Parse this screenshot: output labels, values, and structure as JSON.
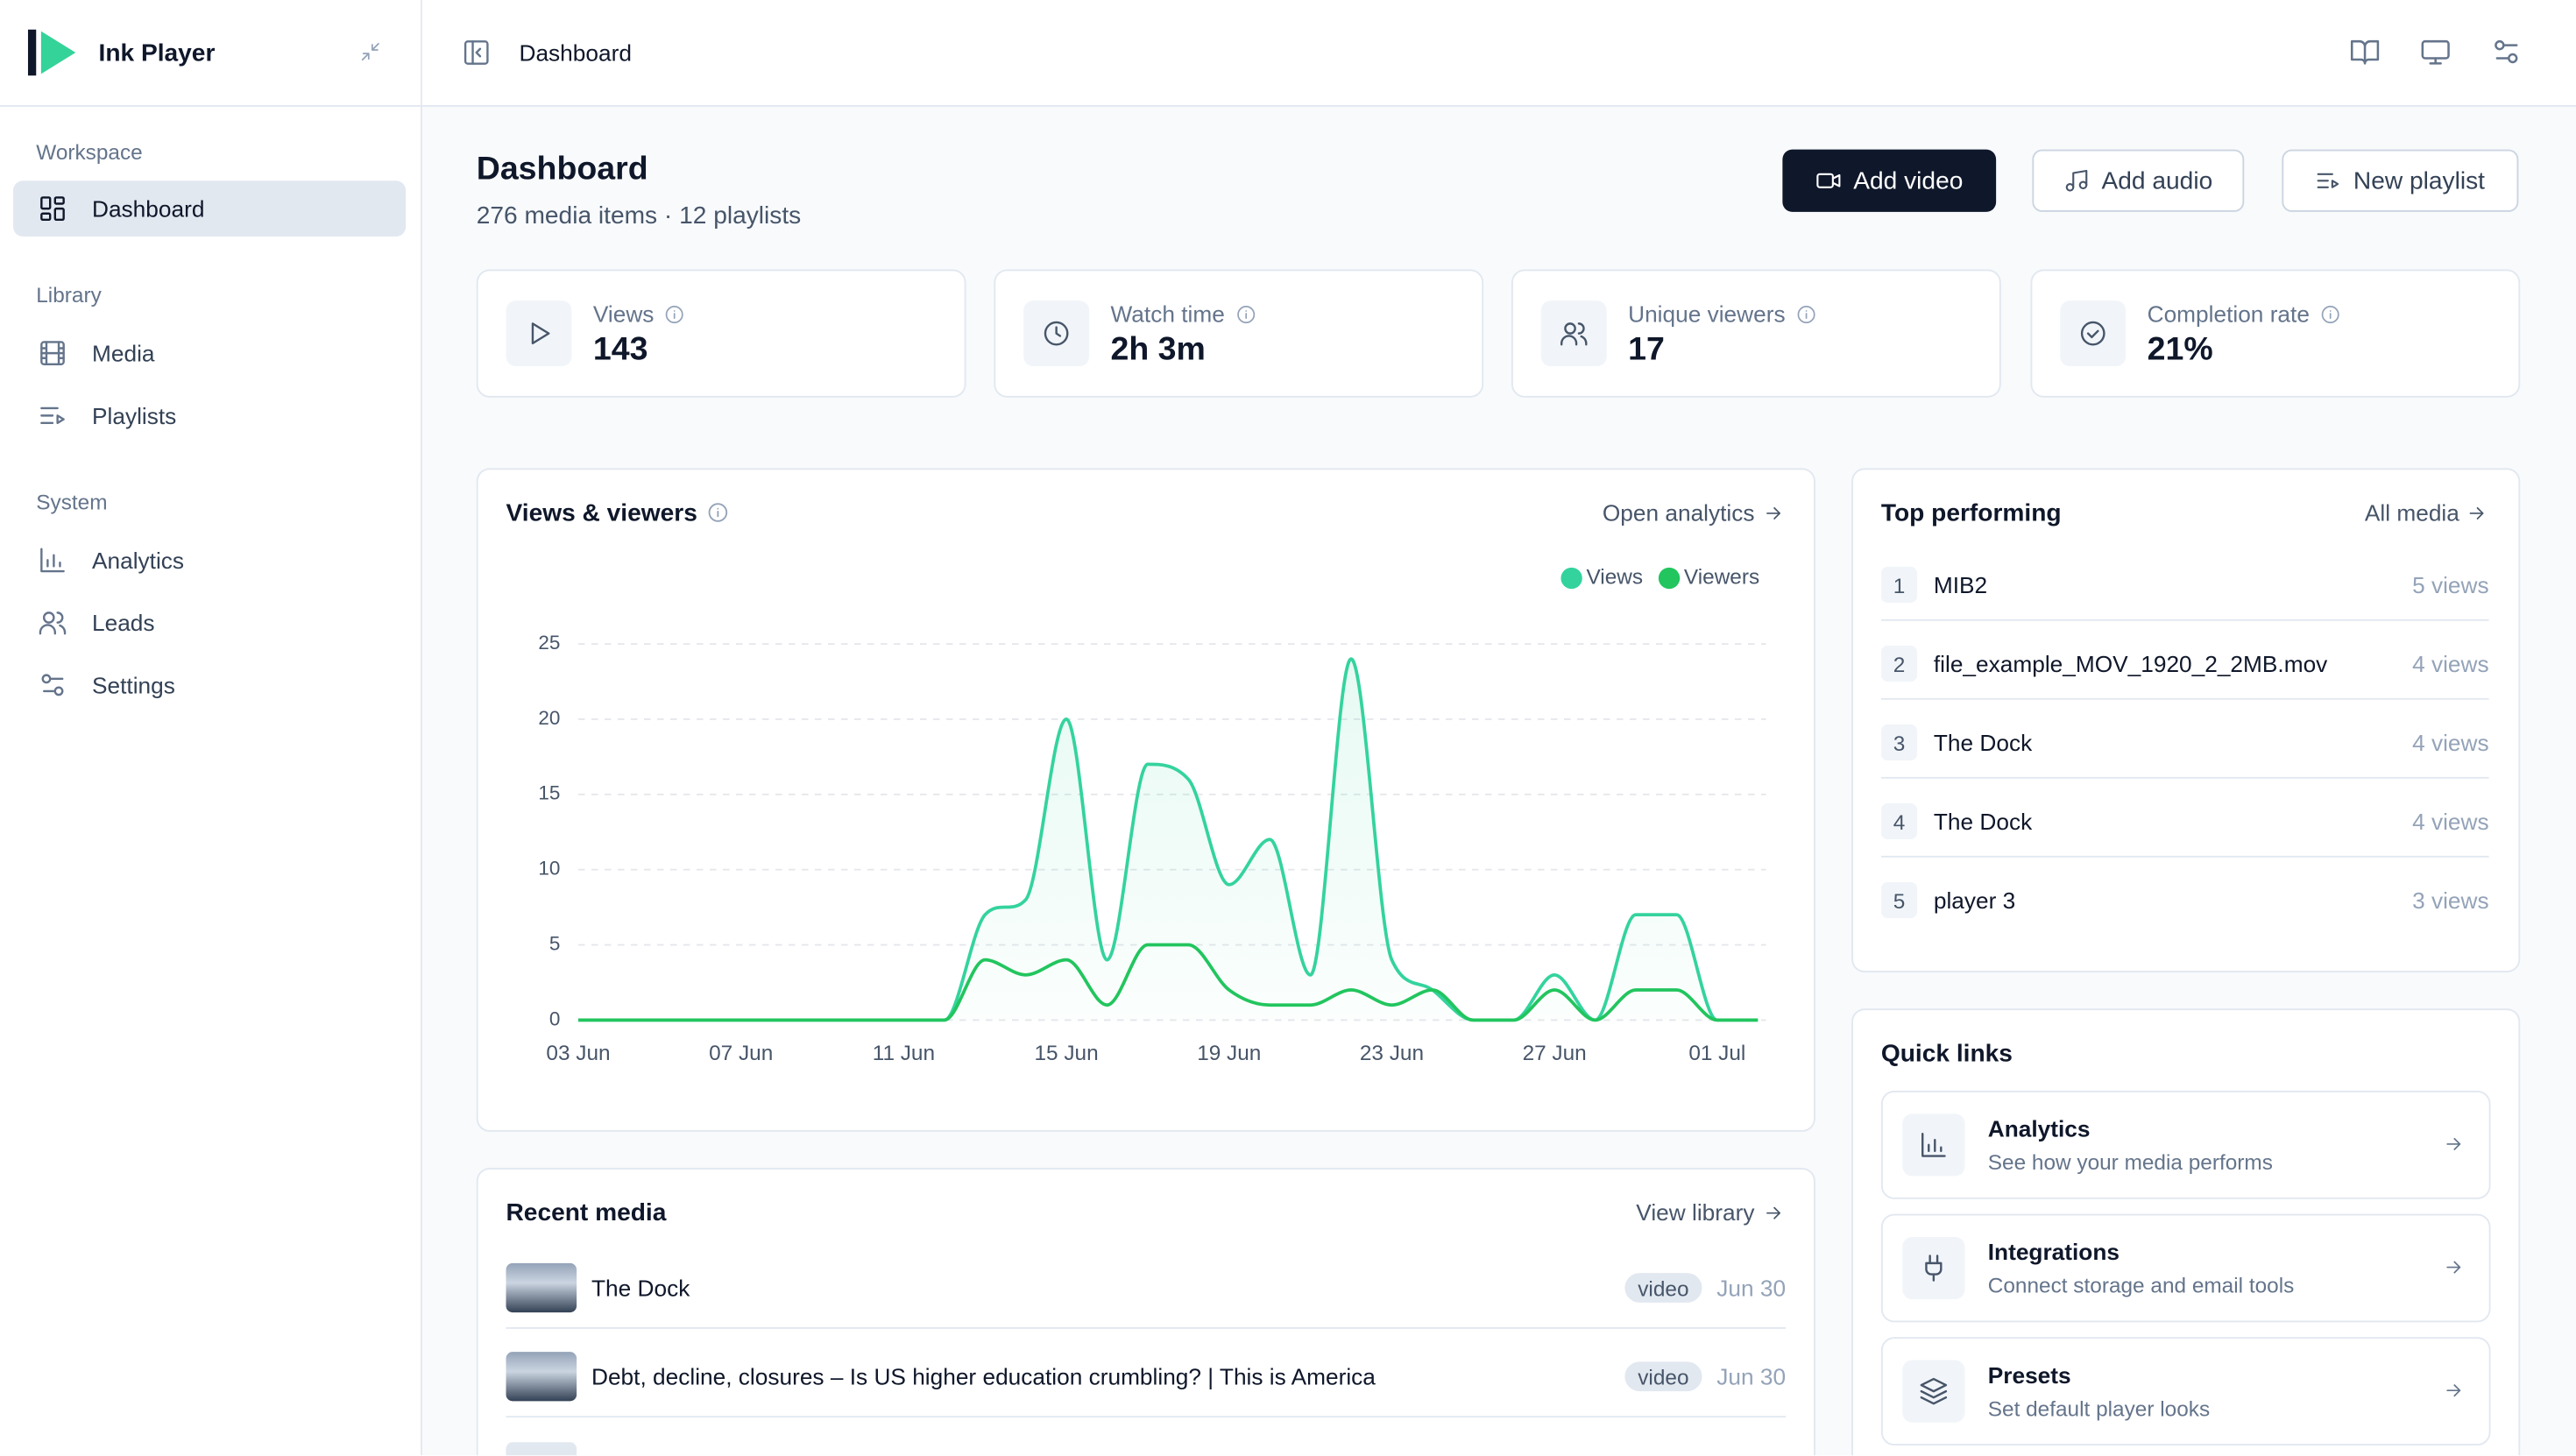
{
  "app": {
    "name": "Ink Player"
  },
  "sidebar": {
    "sections": [
      {
        "title": "Workspace",
        "items": [
          "Dashboard"
        ]
      },
      {
        "title": "Library",
        "items": [
          "Media",
          "Playlists"
        ]
      },
      {
        "title": "System",
        "items": [
          "Analytics",
          "Leads",
          "Settings"
        ]
      }
    ]
  },
  "header": {
    "breadcrumb": "Dashboard"
  },
  "page": {
    "title": "Dashboard",
    "subtitle": "276 media items · 12 playlists",
    "actions": [
      "Add video",
      "Add audio",
      "New playlist"
    ]
  },
  "stats": [
    {
      "label": "Views",
      "value": "143"
    },
    {
      "label": "Watch time",
      "value": "2h 3m"
    },
    {
      "label": "Unique viewers",
      "value": "17"
    },
    {
      "label": "Completion rate",
      "value": "21%"
    }
  ],
  "chart_card": {
    "title": "Views & viewers",
    "link": "Open analytics"
  },
  "chart_data": {
    "type": "line",
    "categories": [
      "03 Jun",
      null,
      null,
      null,
      "07 Jun",
      null,
      null,
      null,
      "11 Jun",
      null,
      null,
      null,
      "15 Jun",
      null,
      null,
      null,
      "19 Jun",
      null,
      null,
      null,
      "23 Jun",
      null,
      null,
      null,
      "27 Jun",
      null,
      null,
      null,
      "01 Jul",
      null
    ],
    "series": [
      {
        "name": "Views",
        "color": "#34d39e",
        "values": [
          0,
          0,
          0,
          0,
          0,
          0,
          0,
          0,
          0,
          0,
          7,
          8,
          20,
          4,
          17,
          16,
          9,
          12,
          3,
          24,
          4,
          2,
          0,
          0,
          3,
          0,
          7,
          7,
          0,
          0
        ]
      },
      {
        "name": "Viewers",
        "color": "#22c55e",
        "values": [
          0,
          0,
          0,
          0,
          0,
          0,
          0,
          0,
          0,
          0,
          4,
          3,
          4,
          1,
          5,
          5,
          2,
          1,
          1,
          2,
          1,
          2,
          0,
          0,
          2,
          0,
          2,
          2,
          0,
          0
        ]
      }
    ],
    "ylim": [
      0,
      25
    ],
    "yticks": [
      0,
      5,
      10,
      15,
      20,
      25
    ],
    "grid": true,
    "legend": "top-right"
  },
  "top_performing": {
    "title": "Top performing",
    "link": "All media",
    "items": [
      {
        "rank": 1,
        "name": "MIB2",
        "views": "5 views"
      },
      {
        "rank": 2,
        "name": "file_example_MOV_1920_2_2MB.mov",
        "views": "4 views"
      },
      {
        "rank": 3,
        "name": "The Dock",
        "views": "4 views"
      },
      {
        "rank": 4,
        "name": "The Dock",
        "views": "4 views"
      },
      {
        "rank": 5,
        "name": "player 3",
        "views": "3 views"
      }
    ]
  },
  "quick_links": {
    "title": "Quick links",
    "items": [
      {
        "title": "Analytics",
        "description": "See how your media performs"
      },
      {
        "title": "Integrations",
        "description": "Connect storage and email tools"
      },
      {
        "title": "Presets",
        "description": "Set default player looks"
      }
    ]
  },
  "recent_media": {
    "title": "Recent media",
    "link": "View library",
    "items": [
      {
        "title": "The Dock",
        "type": "video",
        "date": "Jun 30"
      },
      {
        "title": "Debt, decline, closures – Is US higher education crumbling? | This is America",
        "type": "video",
        "date": "Jun 30"
      }
    ]
  }
}
